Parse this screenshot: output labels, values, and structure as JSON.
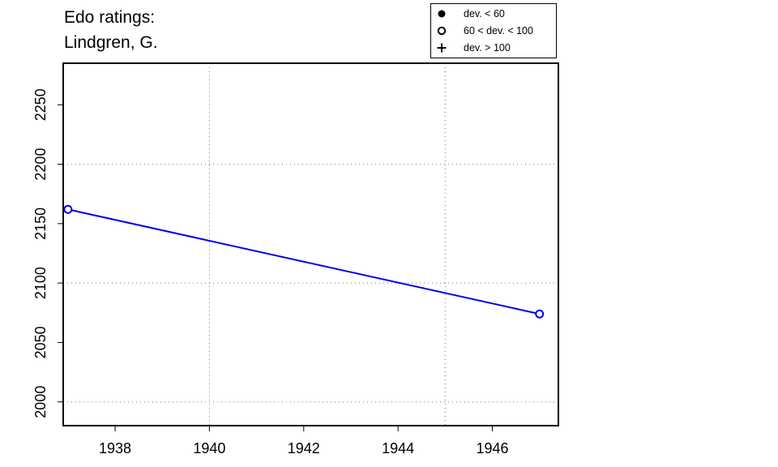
{
  "title_lines": [
    "Edo ratings:",
    "Lindgren, G."
  ],
  "legend": [
    {
      "symbol": "filled-circle",
      "label": "dev. < 60"
    },
    {
      "symbol": "open-circle",
      "label": "60 < dev. < 100"
    },
    {
      "symbol": "plus",
      "label": "dev. > 100"
    }
  ],
  "chart_data": {
    "type": "line",
    "title": "Edo ratings:\nLindgren, G.",
    "xlabel": "",
    "ylabel": "",
    "xlim": [
      1936.9,
      1947.4
    ],
    "ylim": [
      1980,
      2285
    ],
    "x_ticks": [
      1938,
      1940,
      1942,
      1944,
      1946
    ],
    "y_ticks": [
      2000,
      2050,
      2100,
      2150,
      2200,
      2250
    ],
    "x_grid": [
      1940,
      1945
    ],
    "y_grid": [
      2000,
      2100,
      2200
    ],
    "grid": true,
    "legend_position": "top-right",
    "series": [
      {
        "color": "#0000ee",
        "marker": "open-circle",
        "x": [
          1937,
          1947
        ],
        "y": [
          2162,
          2074
        ]
      }
    ]
  }
}
